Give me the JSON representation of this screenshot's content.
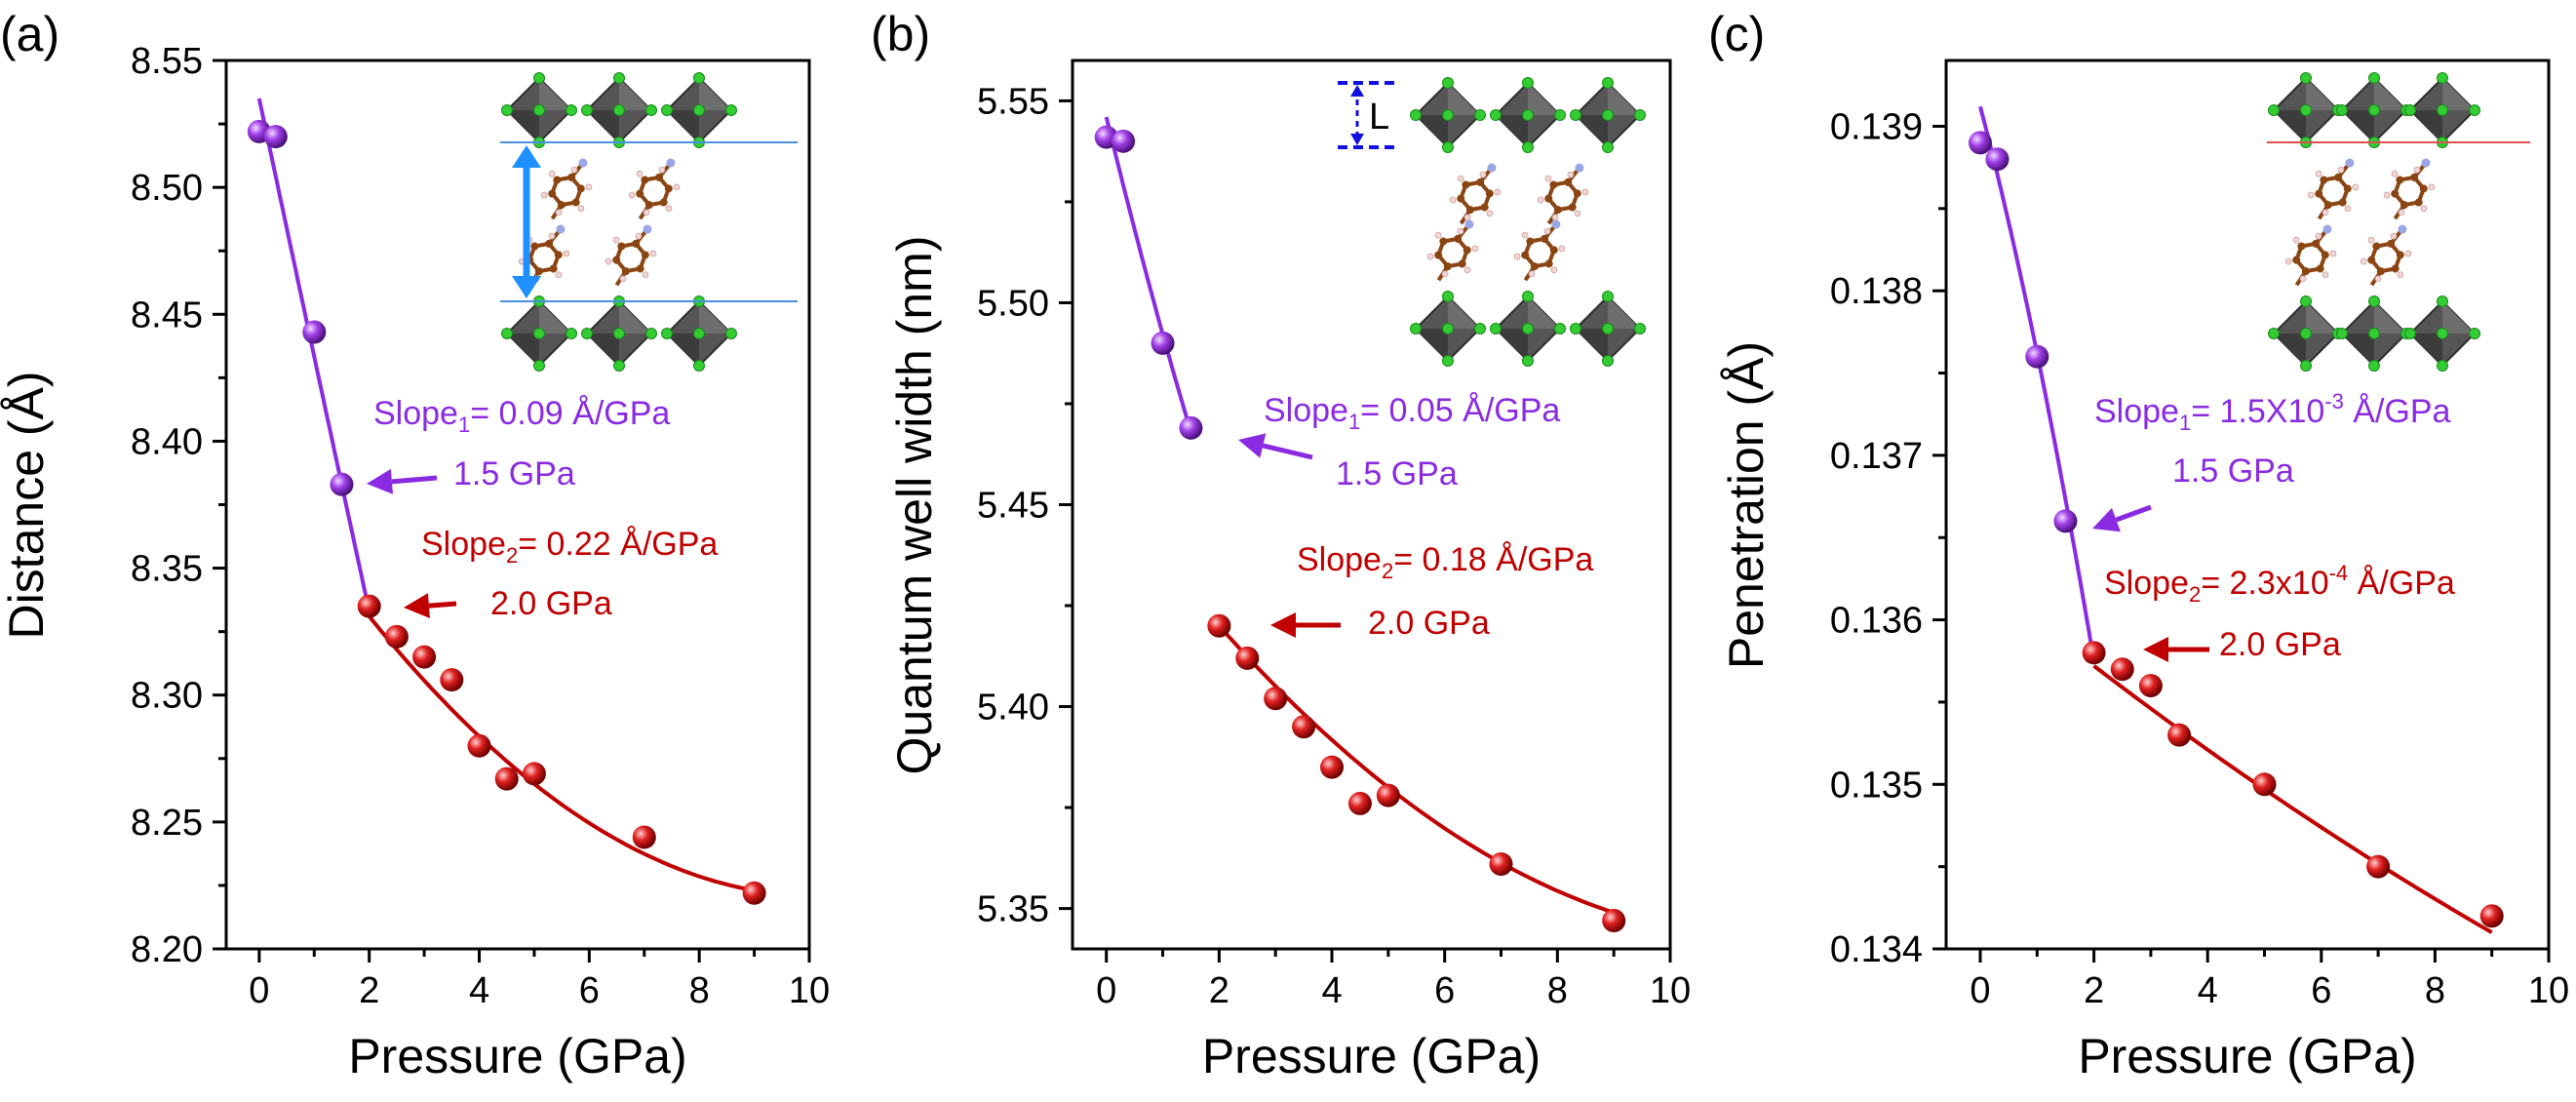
{
  "figure": {
    "colors": {
      "phase1": "#8A2BE2",
      "phase2": "#C00000",
      "axis": "#000000",
      "arrowBlue": "#1E90FF",
      "octahedron": "#555555",
      "octaEdge": "#2E2E2E",
      "halide": "#33CC33",
      "carbon": "#8B4513",
      "nitrogen": "#9AA6E6",
      "hydrogen": "#F2D6D6",
      "refLine": "#4A90E2",
      "refLineRed": "#E05050",
      "dashBlue": "#1010E0"
    }
  },
  "chart_data": [
    {
      "type": "scatter",
      "panel_label": "(a)",
      "title": "",
      "xlabel": "Pressure (GPa)",
      "ylabel": "Distance (Å)",
      "xlim": [
        -0.6,
        10
      ],
      "ylim": [
        8.2,
        8.55
      ],
      "xticks": [
        0,
        2,
        4,
        6,
        8,
        10
      ],
      "xtick_labels": [
        "0",
        "2",
        "4",
        "6",
        "8",
        "10"
      ],
      "yticks": [
        8.2,
        8.25,
        8.3,
        8.35,
        8.4,
        8.45,
        8.5,
        8.55
      ],
      "ytick_labels": [
        "8.20",
        "8.25",
        "8.30",
        "8.35",
        "8.40",
        "8.45",
        "8.50",
        "8.55"
      ],
      "grid": false,
      "series": [
        {
          "points": [
            [
              0,
              8.522
            ],
            [
              0.3,
              8.52
            ],
            [
              1.0,
              8.443
            ],
            [
              1.5,
              8.383
            ]
          ]
        },
        {
          "points": [
            [
              2.0,
              8.335
            ],
            [
              2.5,
              8.323
            ],
            [
              3.0,
              8.315
            ],
            [
              3.5,
              8.306
            ],
            [
              4.0,
              8.28
            ],
            [
              4.5,
              8.267
            ],
            [
              5.0,
              8.269
            ],
            [
              7.0,
              8.244
            ],
            [
              9.0,
              8.222
            ]
          ]
        }
      ],
      "fits": [
        {
          "series": 0,
          "kind": "quadratic",
          "x": [
            0,
            1.5,
            2.0
          ],
          "y": [
            8.535,
            8.383,
            8.333
          ],
          "range": [
            0,
            2.0
          ]
        },
        {
          "series": 1,
          "kind": "quadratic",
          "x": [
            2.0,
            5.0,
            9.0
          ],
          "y": [
            8.331,
            8.265,
            8.223
          ],
          "range": [
            2.0,
            9.0
          ]
        }
      ],
      "annotations": {
        "slope1": {
          "prefix": "Slope",
          "sub": "1",
          "value": "= 0.09 Å/GPa"
        },
        "pressure1": "1.5 GPa",
        "slope2": {
          "prefix": "Slope",
          "sub": "2",
          "value": "= 0.22 Å/GPa"
        },
        "pressure2": "2.0 GPa"
      }
    },
    {
      "type": "scatter",
      "panel_label": "(b)",
      "title": "",
      "xlabel": "Pressure (GPa)",
      "ylabel": "Quantum well width (nm)",
      "xlim": [
        -0.6,
        10
      ],
      "ylim": [
        5.34,
        5.56
      ],
      "xticks": [
        0,
        2,
        4,
        6,
        8,
        10
      ],
      "xtick_labels": [
        "0",
        "2",
        "4",
        "6",
        "8",
        "10"
      ],
      "yticks": [
        5.35,
        5.4,
        5.45,
        5.5,
        5.55
      ],
      "ytick_labels": [
        "5.35",
        "5.40",
        "5.45",
        "5.50",
        "5.55"
      ],
      "grid": false,
      "series": [
        {
          "points": [
            [
              0,
              5.541
            ],
            [
              0.3,
              5.54
            ],
            [
              1.0,
              5.49
            ],
            [
              1.5,
              5.469
            ]
          ]
        },
        {
          "points": [
            [
              2.0,
              5.42
            ],
            [
              2.5,
              5.412
            ],
            [
              3.0,
              5.402
            ],
            [
              3.5,
              5.395
            ],
            [
              4.0,
              5.385
            ],
            [
              4.5,
              5.376
            ],
            [
              5.0,
              5.378
            ],
            [
              7.0,
              5.361
            ],
            [
              9.0,
              5.347
            ]
          ]
        }
      ],
      "fits": [
        {
          "series": 0,
          "kind": "quadratic",
          "x": [
            0,
            0.75,
            1.5
          ],
          "y": [
            5.546,
            5.505,
            5.468
          ],
          "range": [
            0,
            1.5
          ]
        },
        {
          "series": 1,
          "kind": "quadratic",
          "x": [
            2.0,
            5.0,
            9.0
          ],
          "y": [
            5.42,
            5.38,
            5.349
          ],
          "range": [
            2.0,
            9.0
          ]
        }
      ],
      "annotations": {
        "slope1": {
          "prefix": "Slope",
          "sub": "1",
          "value": "= 0.05 Å/GPa"
        },
        "pressure1": "1.5 GPa",
        "slope2": {
          "prefix": "Slope",
          "sub": "2",
          "value": "= 0.18 Å/GPa"
        },
        "pressure2": "2.0 GPa",
        "inset_label": "L"
      }
    },
    {
      "type": "scatter",
      "panel_label": "(c)",
      "title": "",
      "xlabel": "Pressure (GPa)",
      "ylabel": "Penetration (Å)",
      "xlim": [
        -0.6,
        10
      ],
      "ylim": [
        0.134,
        0.1394
      ],
      "xticks": [
        0,
        2,
        4,
        6,
        8,
        10
      ],
      "xtick_labels": [
        "0",
        "2",
        "4",
        "6",
        "8",
        "10"
      ],
      "yticks": [
        0.134,
        0.135,
        0.136,
        0.137,
        0.138,
        0.139
      ],
      "ytick_labels": [
        "0.134",
        "0.135",
        "0.136",
        "0.137",
        "0.138",
        "0.139"
      ],
      "grid": false,
      "series": [
        {
          "points": [
            [
              0,
              0.1389
            ],
            [
              0.3,
              0.1388
            ],
            [
              1.0,
              0.1376
            ],
            [
              1.5,
              0.1366
            ]
          ]
        },
        {
          "points": [
            [
              2.0,
              0.1358
            ],
            [
              2.5,
              0.1357
            ],
            [
              3.0,
              0.1356
            ],
            [
              3.5,
              0.1353
            ],
            [
              5.0,
              0.135
            ],
            [
              7.0,
              0.1345
            ],
            [
              9.0,
              0.1342
            ]
          ]
        }
      ],
      "fits": [
        {
          "series": 0,
          "kind": "quadratic",
          "x": [
            0,
            1.0,
            2.0
          ],
          "y": [
            0.13912,
            0.13762,
            0.13575
          ],
          "range": [
            0,
            2.0
          ]
        },
        {
          "series": 1,
          "kind": "quadratic",
          "x": [
            2.0,
            5.0,
            9.0
          ],
          "y": [
            0.13572,
            0.13497,
            0.1341
          ],
          "range": [
            2.0,
            9.0
          ]
        }
      ],
      "annotations": {
        "slope1": {
          "prefix": "Slope",
          "sub": "1",
          "value": "= 1.5X10",
          "sup": "-3",
          "tail": " Å/GPa"
        },
        "pressure1": "1.5 GPa",
        "slope2": {
          "prefix": "Slope",
          "sub": "2",
          "value": "= 2.3x10",
          "sup": "-4",
          "tail": " Å/GPa"
        },
        "pressure2": "2.0 GPa"
      }
    }
  ]
}
